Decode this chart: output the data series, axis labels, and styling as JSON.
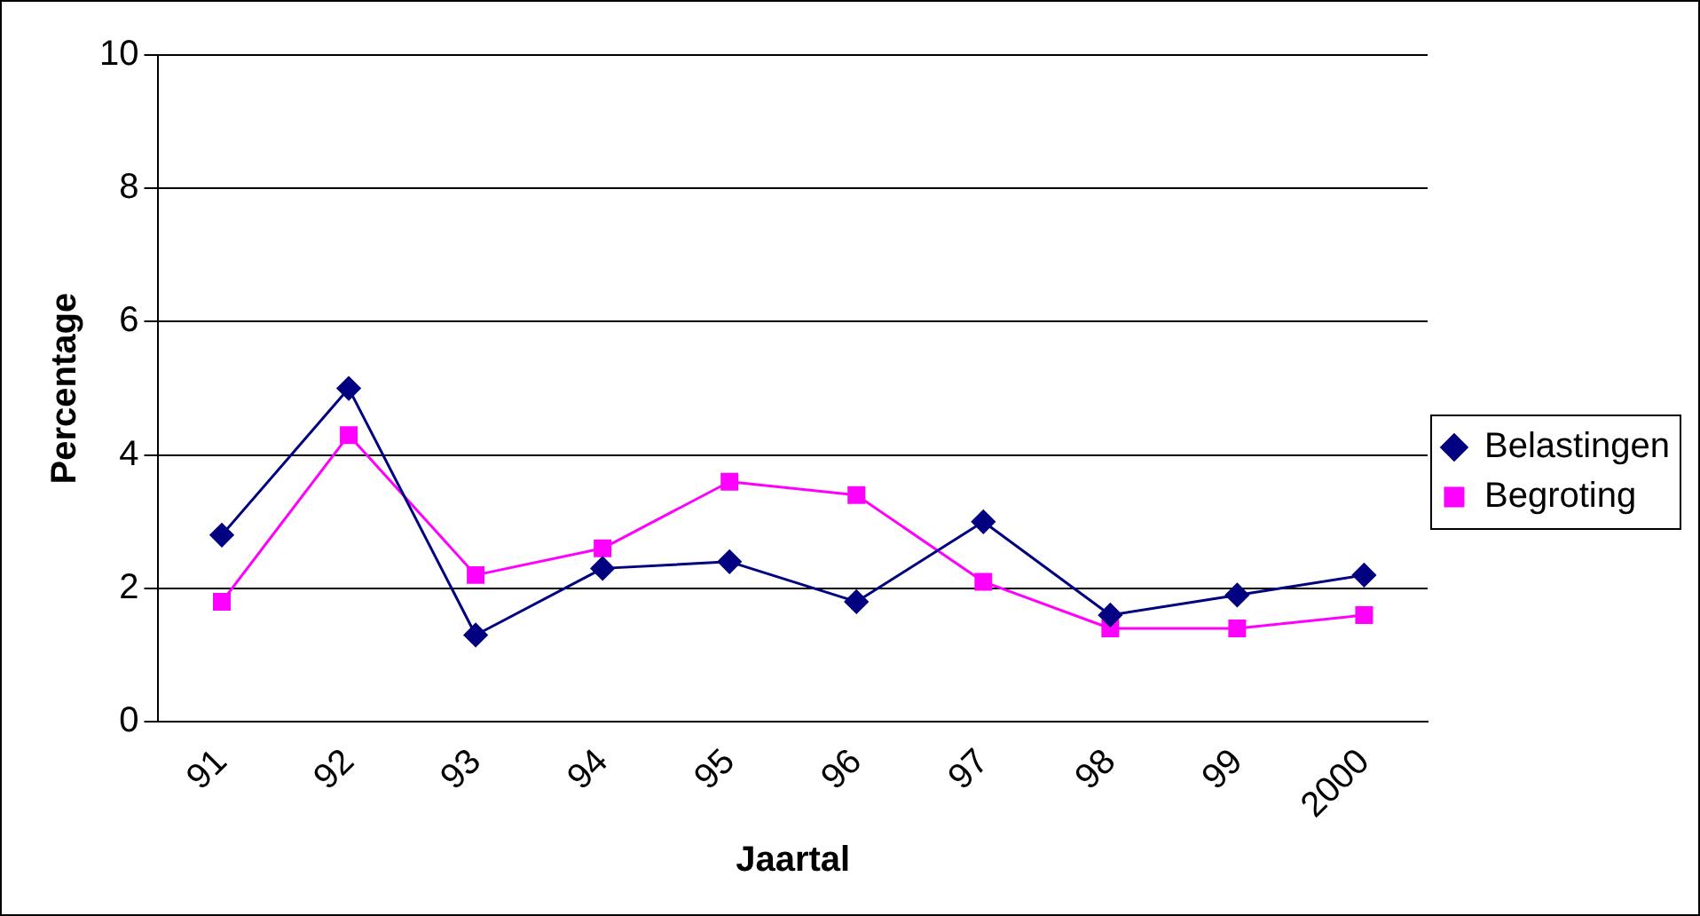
{
  "chart_data": {
    "type": "line",
    "xlabel": "Jaartal",
    "ylabel": "Percentage",
    "categories": [
      "91",
      "92",
      "93",
      "94",
      "95",
      "96",
      "97",
      "98",
      "99",
      "2000"
    ],
    "series": [
      {
        "name": "Belastingen",
        "color": "#000080",
        "marker": "diamond",
        "values": [
          2.8,
          5.0,
          1.3,
          2.3,
          2.4,
          1.8,
          3.0,
          1.6,
          1.9,
          2.2
        ]
      },
      {
        "name": "Begroting",
        "color": "#ff00ff",
        "marker": "square",
        "values": [
          1.8,
          4.3,
          2.2,
          2.6,
          3.6,
          3.4,
          2.1,
          1.4,
          1.4,
          1.6
        ]
      }
    ],
    "ylim": [
      0,
      10
    ],
    "yticks": [
      0,
      2,
      4,
      6,
      8,
      10
    ],
    "grid": "y",
    "legend": "right",
    "line_style": "solid"
  }
}
